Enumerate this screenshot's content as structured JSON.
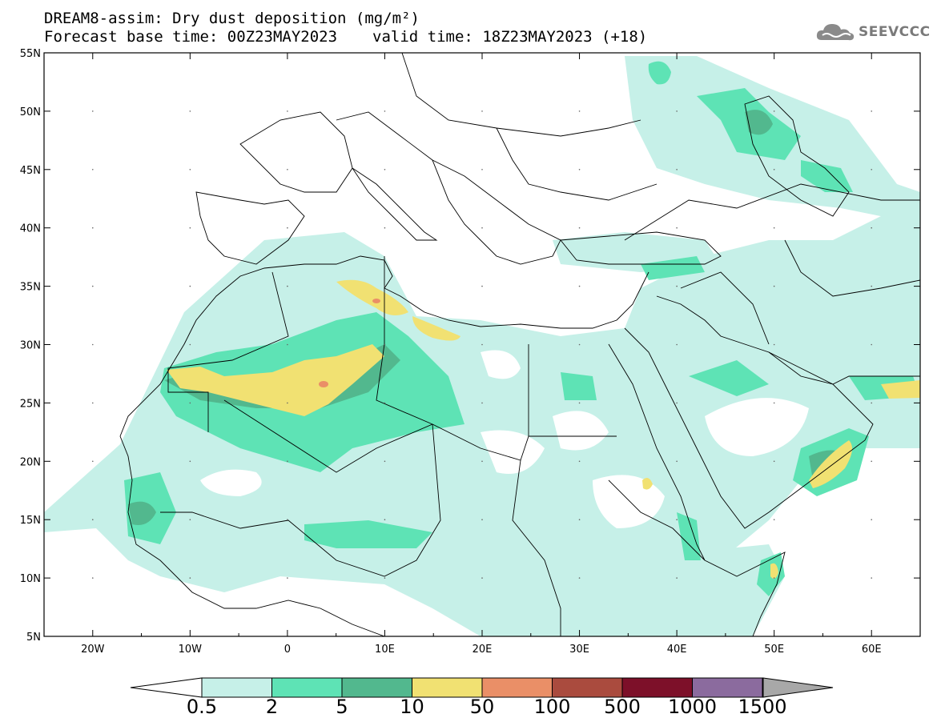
{
  "title": {
    "line1": "DREAM8-assim: Dry dust deposition (mg/m²)",
    "base_time": "Forecast base time: 00Z23MAY2023",
    "valid_time": "valid time: 18Z23MAY2023 (+18)"
  },
  "logo": {
    "text": "SEEVCCC",
    "icon": "cloud-icon"
  },
  "map": {
    "lon_labels": [
      "20W",
      "10W",
      "0",
      "10E",
      "20E",
      "30E",
      "40E",
      "50E",
      "60E"
    ],
    "lat_labels": [
      "55N",
      "50N",
      "45N",
      "40N",
      "35N",
      "30N",
      "25N",
      "20N",
      "15N",
      "10N",
      "5N"
    ],
    "lon_range": [
      -25,
      65
    ],
    "lat_range": [
      5,
      55
    ]
  },
  "legend": {
    "labels": [
      "0.5",
      "2",
      "5",
      "10",
      "50",
      "100",
      "500",
      "1000",
      "1500"
    ],
    "colors": [
      "#c6f0e8",
      "#5ee3b5",
      "#52b88e",
      "#f1e172",
      "#ea8f67",
      "#aa4b3e",
      "#7d1029",
      "#8b6b9e",
      "#a8a8a8"
    ]
  }
}
